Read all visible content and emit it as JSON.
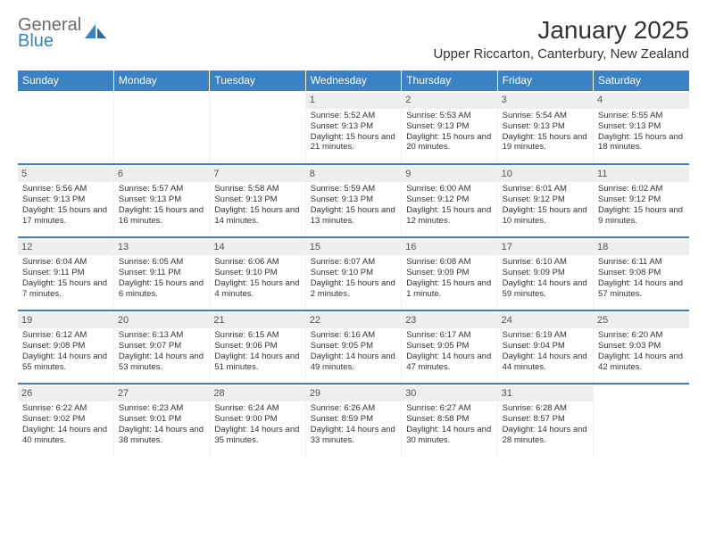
{
  "logo": {
    "part1": "General",
    "part2": "Blue"
  },
  "title": "January 2025",
  "location": "Upper Riccarton, Canterbury, New Zealand",
  "colors": {
    "header_bg": "#3b82c4",
    "header_fg": "#ffffff",
    "daynum_bg": "#eeeeee",
    "row_border": "#3b82c4",
    "text": "#333333"
  },
  "weekdays": [
    "Sunday",
    "Monday",
    "Tuesday",
    "Wednesday",
    "Thursday",
    "Friday",
    "Saturday"
  ],
  "weeks": [
    [
      null,
      null,
      null,
      {
        "d": "1",
        "sr": "5:52 AM",
        "ss": "9:13 PM",
        "dl": "15 hours and 21 minutes."
      },
      {
        "d": "2",
        "sr": "5:53 AM",
        "ss": "9:13 PM",
        "dl": "15 hours and 20 minutes."
      },
      {
        "d": "3",
        "sr": "5:54 AM",
        "ss": "9:13 PM",
        "dl": "15 hours and 19 minutes."
      },
      {
        "d": "4",
        "sr": "5:55 AM",
        "ss": "9:13 PM",
        "dl": "15 hours and 18 minutes."
      }
    ],
    [
      {
        "d": "5",
        "sr": "5:56 AM",
        "ss": "9:13 PM",
        "dl": "15 hours and 17 minutes."
      },
      {
        "d": "6",
        "sr": "5:57 AM",
        "ss": "9:13 PM",
        "dl": "15 hours and 16 minutes."
      },
      {
        "d": "7",
        "sr": "5:58 AM",
        "ss": "9:13 PM",
        "dl": "15 hours and 14 minutes."
      },
      {
        "d": "8",
        "sr": "5:59 AM",
        "ss": "9:13 PM",
        "dl": "15 hours and 13 minutes."
      },
      {
        "d": "9",
        "sr": "6:00 AM",
        "ss": "9:12 PM",
        "dl": "15 hours and 12 minutes."
      },
      {
        "d": "10",
        "sr": "6:01 AM",
        "ss": "9:12 PM",
        "dl": "15 hours and 10 minutes."
      },
      {
        "d": "11",
        "sr": "6:02 AM",
        "ss": "9:12 PM",
        "dl": "15 hours and 9 minutes."
      }
    ],
    [
      {
        "d": "12",
        "sr": "6:04 AM",
        "ss": "9:11 PM",
        "dl": "15 hours and 7 minutes."
      },
      {
        "d": "13",
        "sr": "6:05 AM",
        "ss": "9:11 PM",
        "dl": "15 hours and 6 minutes."
      },
      {
        "d": "14",
        "sr": "6:06 AM",
        "ss": "9:10 PM",
        "dl": "15 hours and 4 minutes."
      },
      {
        "d": "15",
        "sr": "6:07 AM",
        "ss": "9:10 PM",
        "dl": "15 hours and 2 minutes."
      },
      {
        "d": "16",
        "sr": "6:08 AM",
        "ss": "9:09 PM",
        "dl": "15 hours and 1 minute."
      },
      {
        "d": "17",
        "sr": "6:10 AM",
        "ss": "9:09 PM",
        "dl": "14 hours and 59 minutes."
      },
      {
        "d": "18",
        "sr": "6:11 AM",
        "ss": "9:08 PM",
        "dl": "14 hours and 57 minutes."
      }
    ],
    [
      {
        "d": "19",
        "sr": "6:12 AM",
        "ss": "9:08 PM",
        "dl": "14 hours and 55 minutes."
      },
      {
        "d": "20",
        "sr": "6:13 AM",
        "ss": "9:07 PM",
        "dl": "14 hours and 53 minutes."
      },
      {
        "d": "21",
        "sr": "6:15 AM",
        "ss": "9:06 PM",
        "dl": "14 hours and 51 minutes."
      },
      {
        "d": "22",
        "sr": "6:16 AM",
        "ss": "9:05 PM",
        "dl": "14 hours and 49 minutes."
      },
      {
        "d": "23",
        "sr": "6:17 AM",
        "ss": "9:05 PM",
        "dl": "14 hours and 47 minutes."
      },
      {
        "d": "24",
        "sr": "6:19 AM",
        "ss": "9:04 PM",
        "dl": "14 hours and 44 minutes."
      },
      {
        "d": "25",
        "sr": "6:20 AM",
        "ss": "9:03 PM",
        "dl": "14 hours and 42 minutes."
      }
    ],
    [
      {
        "d": "26",
        "sr": "6:22 AM",
        "ss": "9:02 PM",
        "dl": "14 hours and 40 minutes."
      },
      {
        "d": "27",
        "sr": "6:23 AM",
        "ss": "9:01 PM",
        "dl": "14 hours and 38 minutes."
      },
      {
        "d": "28",
        "sr": "6:24 AM",
        "ss": "9:00 PM",
        "dl": "14 hours and 35 minutes."
      },
      {
        "d": "29",
        "sr": "6:26 AM",
        "ss": "8:59 PM",
        "dl": "14 hours and 33 minutes."
      },
      {
        "d": "30",
        "sr": "6:27 AM",
        "ss": "8:58 PM",
        "dl": "14 hours and 30 minutes."
      },
      {
        "d": "31",
        "sr": "6:28 AM",
        "ss": "8:57 PM",
        "dl": "14 hours and 28 minutes."
      },
      null
    ]
  ],
  "labels": {
    "sunrise": "Sunrise:",
    "sunset": "Sunset:",
    "daylight": "Daylight:"
  }
}
